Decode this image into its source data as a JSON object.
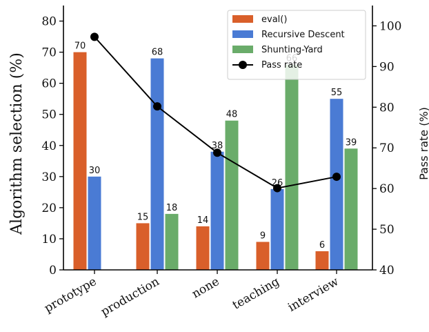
{
  "chart_data": {
    "type": "bar",
    "categories": [
      "prototype",
      "production",
      "none",
      "teaching",
      "interview"
    ],
    "series": [
      {
        "name": "eval()",
        "values": [
          70,
          15,
          14,
          9,
          6
        ],
        "color": "#d95f2a"
      },
      {
        "name": "Recursive Descent",
        "values": [
          30,
          68,
          38,
          26,
          55
        ],
        "color": "#4a7bd4"
      },
      {
        "name": "Shunting-Yard",
        "values": [
          0,
          18,
          48,
          66,
          39
        ],
        "color": "#6aac6a"
      }
    ],
    "bar_labels": [
      [
        "70",
        "15",
        "14",
        "9",
        "6"
      ],
      [
        "30",
        "68",
        "38",
        "26",
        "55"
      ],
      [
        "",
        "18",
        "48",
        "66",
        "39"
      ]
    ],
    "line_series": {
      "name": "Pass rate",
      "values": [
        97.3,
        80.2,
        68.8,
        60.1,
        62.9
      ],
      "color": "#000000"
    },
    "ylabel": "Algorithm selection (%)",
    "y2label": "Pass rate (%)",
    "ylim": [
      0,
      85
    ],
    "y2lim": [
      40,
      105
    ],
    "yticks": [
      0,
      10,
      20,
      30,
      40,
      50,
      60,
      70,
      80
    ],
    "y2ticks": [
      40,
      50,
      60,
      70,
      80,
      90,
      100
    ],
    "legend_position": "top-right",
    "grid": false
  }
}
